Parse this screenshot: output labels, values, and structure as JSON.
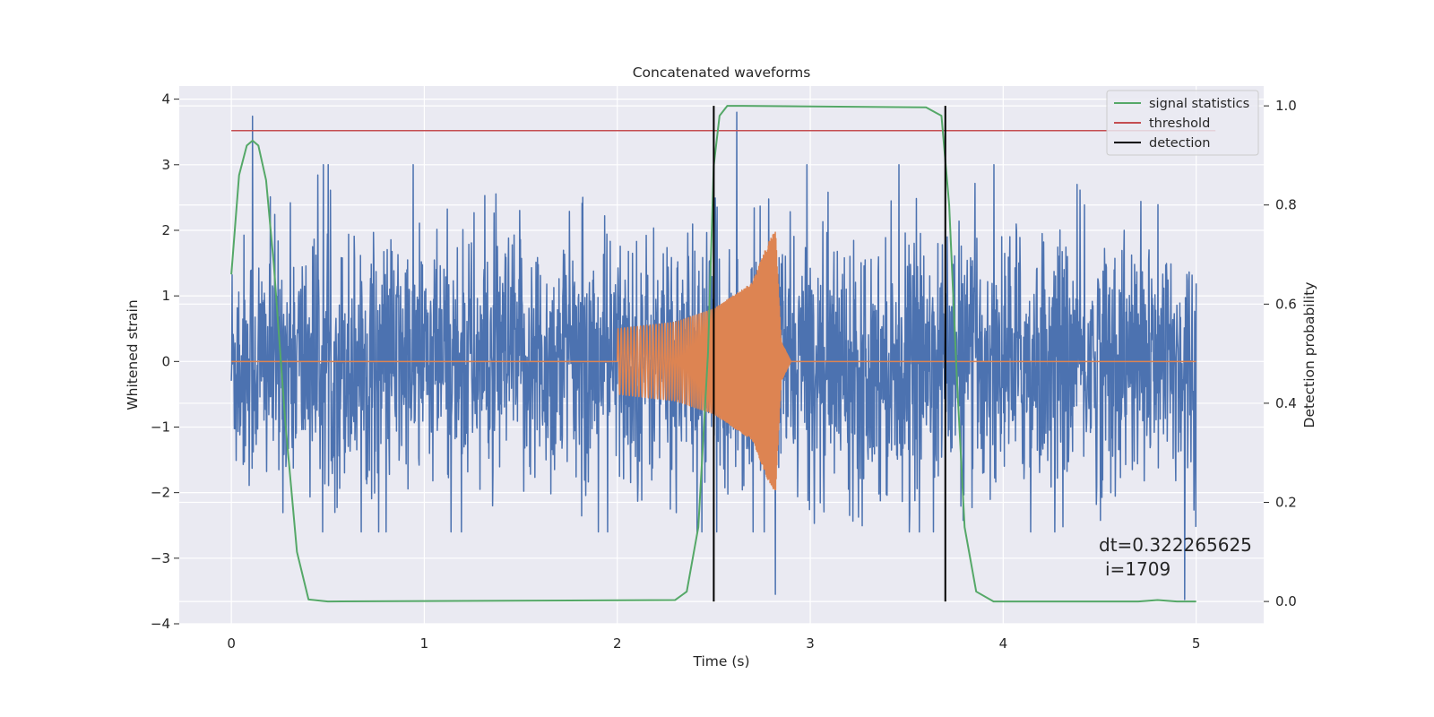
{
  "chart_data": {
    "type": "line",
    "title": "Concatenated waveforms",
    "xlabel": "Time (s)",
    "ylabel": "Whitened strain",
    "ylabel_right": "Detection probability",
    "xlim": [
      -0.27,
      5.35
    ],
    "ylim": [
      -4.0,
      4.2
    ],
    "ylim_right": [
      -0.045,
      1.04
    ],
    "x_ticks": [
      "0",
      "1",
      "2",
      "3",
      "4",
      "5"
    ],
    "y_ticks": [
      "4",
      "3",
      "2",
      "1",
      "0",
      "−1",
      "−2",
      "−3",
      "−4"
    ],
    "y_ticks_right": [
      "1.0",
      "0.8",
      "0.6",
      "0.4",
      "0.2",
      "0.0"
    ],
    "grid": true,
    "legend_position": "top-right",
    "series": [
      {
        "role": "strain",
        "axis": "left",
        "color": "#4c72b0",
        "description": "whitened detector noise, roughly within [-2.4, 2.8] with spikes to 3.74 near t=0.11 and 3.8 near t=2.62",
        "x_range": [
          0,
          5
        ],
        "peaks": [
          [
            0.11,
            3.74
          ],
          [
            2.62,
            3.8
          ],
          [
            2.82,
            -3.55
          ],
          [
            4.94,
            -3.63
          ]
        ]
      },
      {
        "role": "waveform",
        "axis": "left",
        "color": "#dd8452",
        "description": "injected chirp: zero until t=2.0, oscillation with growing amplitude until merger near t=2.82, then decays to zero",
        "envelope": [
          [
            2.0,
            0.5
          ],
          [
            2.3,
            0.6
          ],
          [
            2.5,
            0.8
          ],
          [
            2.7,
            1.2
          ],
          [
            2.78,
            1.8
          ],
          [
            2.82,
            2.0
          ],
          [
            2.85,
            0.3
          ],
          [
            2.9,
            0.0
          ]
        ]
      },
      {
        "name": "signal statistics",
        "axis": "right",
        "color": "#55a868",
        "x": [
          0,
          0.04,
          0.08,
          0.11,
          0.14,
          0.18,
          0.22,
          0.28,
          0.34,
          0.4,
          0.5,
          2.3,
          2.36,
          2.42,
          2.47,
          2.5,
          2.53,
          2.57,
          2.65,
          3.6,
          3.68,
          3.72,
          3.76,
          3.8,
          3.86,
          3.95,
          4.7,
          4.8,
          4.9,
          5.0
        ],
        "y": [
          0.66,
          0.86,
          0.92,
          0.93,
          0.92,
          0.85,
          0.68,
          0.36,
          0.1,
          0.004,
          0.0,
          0.003,
          0.02,
          0.15,
          0.5,
          0.88,
          0.98,
          1.0,
          1.0,
          0.997,
          0.98,
          0.8,
          0.45,
          0.15,
          0.02,
          0.0,
          0.0,
          0.003,
          0.0,
          0.0
        ]
      },
      {
        "name": "threshold",
        "axis": "right",
        "color": "#c44e52",
        "x": [
          0,
          5.1
        ],
        "y": [
          0.95,
          0.95
        ]
      },
      {
        "name": "detection",
        "axis": "right",
        "color": "#000000",
        "x": [
          2.5,
          3.7
        ],
        "y_span": [
          0.0,
          1.0
        ]
      }
    ],
    "annotations": [
      "dt=0.322265625",
      "i=1709"
    ]
  }
}
